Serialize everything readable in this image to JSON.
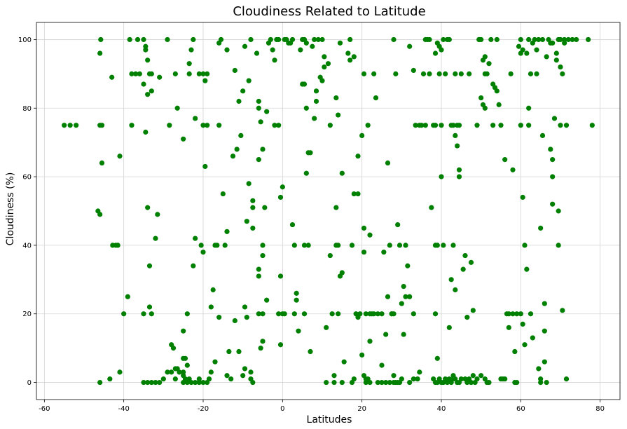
{
  "chart_data": {
    "type": "scatter",
    "title": "Cloudiness Related to Latitude",
    "xlabel": "Latitudes",
    "ylabel": "Cloudiness (%)",
    "xlim": [
      -62,
      85
    ],
    "ylim": [
      -5,
      105
    ],
    "xticks": [
      -60,
      -40,
      -20,
      0,
      20,
      40,
      60,
      80
    ],
    "yticks": [
      0,
      20,
      40,
      60,
      80,
      100
    ],
    "grid": true,
    "legend": "none",
    "colors": {
      "marker": "#008000",
      "grid": "#d3d3d3"
    },
    "points": [
      [
        -55,
        75
      ],
      [
        -53.5,
        75
      ],
      [
        -52,
        75
      ],
      [
        -46.5,
        50
      ],
      [
        -46,
        49
      ],
      [
        -46,
        96
      ],
      [
        -45.8,
        100
      ],
      [
        -46,
        75
      ],
      [
        -45.5,
        75
      ],
      [
        -45.5,
        64
      ],
      [
        -46,
        0
      ],
      [
        -43,
        89
      ],
      [
        -42.8,
        40
      ],
      [
        -42,
        40
      ],
      [
        -41.5,
        40
      ],
      [
        -41,
        66
      ],
      [
        -41,
        3
      ],
      [
        -43.5,
        1
      ],
      [
        -40,
        20
      ],
      [
        -39,
        25
      ],
      [
        -38.5,
        100
      ],
      [
        -38,
        75
      ],
      [
        -38,
        90
      ],
      [
        -37,
        90
      ],
      [
        -36,
        90
      ],
      [
        -36.5,
        100
      ],
      [
        -35,
        100
      ],
      [
        -34.5,
        97
      ],
      [
        -34.5,
        98
      ],
      [
        -34,
        94
      ],
      [
        -34,
        84
      ],
      [
        -33.5,
        90
      ],
      [
        -33,
        85
      ],
      [
        -34.5,
        73
      ],
      [
        -35,
        87
      ],
      [
        -34,
        51
      ],
      [
        -33.5,
        34
      ],
      [
        -33.5,
        22
      ],
      [
        -33,
        20
      ],
      [
        -35,
        20
      ],
      [
        -33,
        90
      ],
      [
        -35,
        0
      ],
      [
        -34,
        0
      ],
      [
        -33,
        0
      ],
      [
        -32,
        0
      ],
      [
        -31,
        0
      ],
      [
        -31.5,
        49
      ],
      [
        -32,
        42
      ],
      [
        -31,
        89
      ],
      [
        -30,
        1
      ],
      [
        -29,
        100
      ],
      [
        -28.5,
        75
      ],
      [
        -28,
        11
      ],
      [
        -27.5,
        10
      ],
      [
        -29,
        3
      ],
      [
        -28,
        3
      ],
      [
        -27,
        4
      ],
      [
        -26.5,
        4
      ],
      [
        -26,
        3
      ],
      [
        -25,
        3
      ],
      [
        -27,
        1
      ],
      [
        -27,
        90
      ],
      [
        -26.5,
        80
      ],
      [
        -25,
        71
      ],
      [
        -25,
        15
      ],
      [
        -25,
        7
      ],
      [
        -24.5,
        7
      ],
      [
        -24,
        20
      ],
      [
        -24,
        5
      ],
      [
        -25,
        0
      ],
      [
        -24,
        0
      ],
      [
        -24.5,
        1
      ],
      [
        -23.5,
        1
      ],
      [
        -25,
        2
      ],
      [
        -23.5,
        90
      ],
      [
        -23.5,
        93
      ],
      [
        -23,
        97
      ],
      [
        -22.5,
        100
      ],
      [
        -22,
        77
      ],
      [
        -22,
        42
      ],
      [
        -22.5,
        34
      ],
      [
        -23,
        0
      ],
      [
        -22,
        0
      ],
      [
        -21,
        90
      ],
      [
        -20.5,
        40
      ],
      [
        -20,
        38
      ],
      [
        -20,
        90
      ],
      [
        -19.5,
        88
      ],
      [
        -19,
        90
      ],
      [
        -20,
        75
      ],
      [
        -19,
        75
      ],
      [
        -19.5,
        63
      ],
      [
        -18,
        22
      ],
      [
        -17.5,
        27
      ],
      [
        -17,
        40
      ],
      [
        -16.5,
        40
      ],
      [
        -16,
        19
      ],
      [
        -17,
        6
      ],
      [
        -18,
        3
      ],
      [
        -21,
        0
      ],
      [
        -20,
        0
      ],
      [
        -19,
        0
      ],
      [
        -18.5,
        1
      ],
      [
        -21,
        1
      ],
      [
        -16,
        99
      ],
      [
        -15.5,
        100
      ],
      [
        -16,
        75
      ],
      [
        -15,
        55
      ],
      [
        -14,
        97
      ],
      [
        -14,
        44
      ],
      [
        -14.5,
        40
      ],
      [
        -14,
        2
      ],
      [
        -13,
        1
      ],
      [
        -13.5,
        9
      ],
      [
        -12.5,
        66
      ],
      [
        -12,
        91
      ],
      [
        -11.5,
        68
      ],
      [
        -11,
        82
      ],
      [
        -10.5,
        72
      ],
      [
        -10,
        85
      ],
      [
        -9.5,
        98
      ],
      [
        -12,
        18
      ],
      [
        -11,
        9
      ],
      [
        -10,
        2
      ],
      [
        -9.5,
        4
      ],
      [
        -9.5,
        22
      ],
      [
        -9,
        19
      ],
      [
        -9,
        47
      ],
      [
        -8.5,
        88
      ],
      [
        -8,
        100
      ],
      [
        -8.5,
        58
      ],
      [
        -7.5,
        53
      ],
      [
        -7.5,
        51
      ],
      [
        -7.5,
        45
      ],
      [
        -8,
        3
      ],
      [
        -7.5,
        0
      ],
      [
        -8,
        1
      ],
      [
        -6.5,
        96
      ],
      [
        -6,
        82
      ],
      [
        -6,
        80
      ],
      [
        -5.5,
        76
      ],
      [
        -6,
        65
      ],
      [
        -5,
        68
      ],
      [
        -4.5,
        51
      ],
      [
        -5,
        40
      ],
      [
        -5,
        37
      ],
      [
        -6,
        33
      ],
      [
        -6,
        31
      ],
      [
        -6,
        20
      ],
      [
        -5,
        20
      ],
      [
        -5,
        12
      ],
      [
        -5.5,
        10
      ],
      [
        -4,
        79
      ],
      [
        -4,
        24
      ],
      [
        -3.5,
        99
      ],
      [
        -3,
        100
      ],
      [
        -2.5,
        97
      ],
      [
        -2,
        94
      ],
      [
        -2,
        75
      ],
      [
        -1.5,
        100
      ],
      [
        -1,
        100
      ],
      [
        -1,
        75
      ],
      [
        -0.5,
        54
      ],
      [
        0,
        57
      ],
      [
        -0.5,
        31
      ],
      [
        -1,
        20
      ],
      [
        0,
        20
      ],
      [
        0.5,
        20
      ],
      [
        -0.5,
        11
      ],
      [
        0.5,
        100
      ],
      [
        1,
        100
      ],
      [
        1.5,
        99
      ],
      [
        2,
        99
      ],
      [
        2.5,
        100
      ],
      [
        2.5,
        46
      ],
      [
        3,
        40
      ],
      [
        3.5,
        24
      ],
      [
        3.5,
        26
      ],
      [
        3,
        20
      ],
      [
        4,
        15
      ],
      [
        4.5,
        97
      ],
      [
        5,
        100
      ],
      [
        5.5,
        100
      ],
      [
        6,
        99
      ],
      [
        5,
        87
      ],
      [
        5.5,
        87
      ],
      [
        6,
        80
      ],
      [
        6.5,
        67
      ],
      [
        7,
        67
      ],
      [
        6,
        61
      ],
      [
        5.5,
        40
      ],
      [
        6.5,
        40
      ],
      [
        5.5,
        20
      ],
      [
        7,
        9
      ],
      [
        7.5,
        98
      ],
      [
        8,
        100
      ],
      [
        9,
        100
      ],
      [
        10,
        100
      ],
      [
        8,
        77
      ],
      [
        8.5,
        82
      ],
      [
        8.5,
        85
      ],
      [
        9.5,
        89
      ],
      [
        10,
        88
      ],
      [
        10.5,
        95
      ],
      [
        10.5,
        92
      ],
      [
        11.5,
        93
      ],
      [
        11,
        16
      ],
      [
        11,
        0
      ],
      [
        12,
        37
      ],
      [
        12,
        75
      ],
      [
        12.5,
        20
      ],
      [
        13,
        2
      ],
      [
        13,
        0
      ],
      [
        13.5,
        51
      ],
      [
        13.5,
        40
      ],
      [
        14,
        40
      ],
      [
        13.5,
        83
      ],
      [
        14,
        78
      ],
      [
        14.5,
        31
      ],
      [
        14.5,
        99
      ],
      [
        15,
        61
      ],
      [
        15,
        32
      ],
      [
        15.5,
        6
      ],
      [
        14,
        20
      ],
      [
        15,
        0
      ],
      [
        16.5,
        96
      ],
      [
        17,
        100
      ],
      [
        17,
        94
      ],
      [
        17.5,
        40
      ],
      [
        18,
        55
      ],
      [
        18,
        95
      ],
      [
        18.5,
        20
      ],
      [
        19,
        19
      ],
      [
        19,
        66
      ],
      [
        19,
        55
      ],
      [
        19.5,
        20
      ],
      [
        20,
        8
      ],
      [
        20.5,
        2
      ],
      [
        18,
        1
      ],
      [
        17.5,
        0
      ],
      [
        20.5,
        90
      ],
      [
        20,
        72
      ],
      [
        20.5,
        45
      ],
      [
        20.5,
        38
      ],
      [
        21,
        20
      ],
      [
        22,
        20
      ],
      [
        22.5,
        20
      ],
      [
        21.5,
        75
      ],
      [
        22,
        12
      ],
      [
        22,
        43
      ],
      [
        23,
        90
      ],
      [
        23,
        20
      ],
      [
        21,
        1
      ],
      [
        21.5,
        1
      ],
      [
        21,
        0
      ],
      [
        22,
        0
      ],
      [
        23.5,
        83
      ],
      [
        24,
        20
      ],
      [
        25,
        20
      ],
      [
        25,
        5
      ],
      [
        25.5,
        38
      ],
      [
        26,
        14
      ],
      [
        26.5,
        25
      ],
      [
        26.5,
        64
      ],
      [
        27,
        40
      ],
      [
        27.5,
        20
      ],
      [
        27.5,
        20
      ],
      [
        28,
        20
      ],
      [
        28,
        2
      ],
      [
        24,
        0
      ],
      [
        25,
        0
      ],
      [
        26,
        0
      ],
      [
        27,
        0
      ],
      [
        28,
        0
      ],
      [
        28.5,
        0
      ],
      [
        29,
        0
      ],
      [
        29.5,
        0
      ],
      [
        28,
        100
      ],
      [
        28.5,
        90
      ],
      [
        29,
        46
      ],
      [
        29.5,
        40
      ],
      [
        30,
        23
      ],
      [
        30.5,
        28
      ],
      [
        30.5,
        14
      ],
      [
        31,
        25
      ],
      [
        31,
        40
      ],
      [
        31.5,
        34
      ],
      [
        32,
        25
      ],
      [
        33,
        20
      ],
      [
        30,
        1
      ],
      [
        32,
        0
      ],
      [
        33,
        1
      ],
      [
        34,
        1
      ],
      [
        34.5,
        3
      ],
      [
        32,
        98
      ],
      [
        33,
        91
      ],
      [
        33.5,
        75
      ],
      [
        34.5,
        75
      ],
      [
        35,
        75
      ],
      [
        35.5,
        90
      ],
      [
        36,
        100
      ],
      [
        36.5,
        100
      ],
      [
        37,
        100
      ],
      [
        36,
        75
      ],
      [
        37,
        90
      ],
      [
        37.5,
        51
      ],
      [
        38,
        75
      ],
      [
        38.5,
        96
      ],
      [
        38.5,
        75
      ],
      [
        39,
        99
      ],
      [
        39.5,
        98
      ],
      [
        40,
        97
      ],
      [
        40.5,
        100
      ],
      [
        40,
        75
      ],
      [
        40,
        60
      ],
      [
        40.5,
        40
      ],
      [
        39,
        40
      ],
      [
        38.5,
        40
      ],
      [
        38.5,
        20
      ],
      [
        39,
        7
      ],
      [
        39.5,
        90
      ],
      [
        38,
        1
      ],
      [
        38.5,
        0
      ],
      [
        39,
        0
      ],
      [
        39.5,
        1
      ],
      [
        40,
        0
      ],
      [
        40.5,
        0
      ],
      [
        41,
        1
      ],
      [
        41.5,
        0
      ],
      [
        42,
        1
      ],
      [
        42.5,
        0
      ],
      [
        43,
        1
      ],
      [
        43,
        2
      ],
      [
        43.5,
        1
      ],
      [
        44,
        0
      ],
      [
        44.5,
        0
      ],
      [
        45,
        1
      ],
      [
        46,
        1
      ],
      [
        46.5,
        0
      ],
      [
        47,
        1
      ],
      [
        47.5,
        0
      ],
      [
        41,
        90
      ],
      [
        41.5,
        100
      ],
      [
        42,
        100
      ],
      [
        42.5,
        75
      ],
      [
        43,
        75
      ],
      [
        43.5,
        72
      ],
      [
        44,
        75
      ],
      [
        44.5,
        75
      ],
      [
        43.5,
        90
      ],
      [
        44,
        69
      ],
      [
        42.5,
        30
      ],
      [
        43,
        40
      ],
      [
        43.5,
        27
      ],
      [
        44.5,
        60
      ],
      [
        44.5,
        62
      ],
      [
        42,
        16
      ],
      [
        45,
        90
      ],
      [
        45.5,
        33
      ],
      [
        46,
        37
      ],
      [
        46.5,
        19
      ],
      [
        47,
        90
      ],
      [
        47.5,
        35
      ],
      [
        48,
        21
      ],
      [
        48,
        2
      ],
      [
        48.5,
        0
      ],
      [
        49,
        1
      ],
      [
        49,
        75
      ],
      [
        49.5,
        100
      ],
      [
        49.5,
        100
      ],
      [
        50,
        100
      ],
      [
        50,
        83
      ],
      [
        50.5,
        94
      ],
      [
        50.5,
        81
      ],
      [
        51,
        80
      ],
      [
        51,
        90
      ],
      [
        51,
        95
      ],
      [
        51.5,
        90
      ],
      [
        52,
        93
      ],
      [
        52.5,
        100
      ],
      [
        53,
        87
      ],
      [
        53,
        75
      ],
      [
        53.5,
        86
      ],
      [
        54,
        85
      ],
      [
        54,
        100
      ],
      [
        50,
        2
      ],
      [
        51,
        1
      ],
      [
        51.5,
        0
      ],
      [
        52,
        0
      ],
      [
        54.5,
        81
      ],
      [
        55,
        75
      ],
      [
        55,
        1
      ],
      [
        55.5,
        1
      ],
      [
        56,
        1
      ],
      [
        56,
        65
      ],
      [
        56.5,
        20
      ],
      [
        57,
        20
      ],
      [
        57,
        16
      ],
      [
        58,
        20
      ],
      [
        57.5,
        90
      ],
      [
        58,
        62
      ],
      [
        58.5,
        9
      ],
      [
        59,
        20
      ],
      [
        59,
        0
      ],
      [
        58.5,
        0
      ],
      [
        59.5,
        98
      ],
      [
        60,
        96
      ],
      [
        60,
        100
      ],
      [
        60,
        75
      ],
      [
        60.5,
        97
      ],
      [
        60.5,
        54
      ],
      [
        61,
        40
      ],
      [
        61,
        11
      ],
      [
        61.5,
        33
      ],
      [
        60.5,
        17
      ],
      [
        60,
        20
      ],
      [
        62,
        80
      ],
      [
        62,
        75
      ],
      [
        62.5,
        90
      ],
      [
        63,
        99
      ],
      [
        63.5,
        100
      ],
      [
        64,
        97
      ],
      [
        64,
        90
      ],
      [
        64.5,
        100
      ],
      [
        64.5,
        4
      ],
      [
        65,
        45
      ],
      [
        65,
        1
      ],
      [
        65,
        0
      ],
      [
        65.5,
        72
      ],
      [
        65.5,
        100
      ],
      [
        66,
        23
      ],
      [
        66,
        15
      ],
      [
        66,
        6
      ],
      [
        66.5,
        95
      ],
      [
        66.5,
        0
      ],
      [
        63,
        13
      ],
      [
        62.5,
        20
      ],
      [
        62,
        100
      ],
      [
        61.5,
        96
      ],
      [
        67,
        100
      ],
      [
        67.5,
        99
      ],
      [
        68,
        99
      ],
      [
        67.5,
        68
      ],
      [
        68,
        65
      ],
      [
        68,
        60
      ],
      [
        68,
        52
      ],
      [
        68.5,
        77
      ],
      [
        69,
        96
      ],
      [
        69,
        94
      ],
      [
        69.5,
        100
      ],
      [
        70,
        92
      ],
      [
        70,
        75
      ],
      [
        69.5,
        50
      ],
      [
        69.5,
        40
      ],
      [
        70,
        100
      ],
      [
        70.5,
        90
      ],
      [
        70.5,
        21
      ],
      [
        71,
        100
      ],
      [
        71,
        99
      ],
      [
        71.5,
        75
      ],
      [
        71.5,
        1
      ],
      [
        72,
        100
      ],
      [
        73,
        100
      ],
      [
        74,
        100
      ],
      [
        77,
        100
      ],
      [
        78,
        75
      ]
    ]
  }
}
